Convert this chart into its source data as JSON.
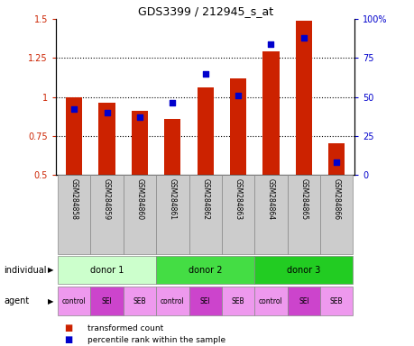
{
  "title": "GDS3399 / 212945_s_at",
  "samples": [
    "GSM284858",
    "GSM284859",
    "GSM284860",
    "GSM284861",
    "GSM284862",
    "GSM284863",
    "GSM284864",
    "GSM284865",
    "GSM284866"
  ],
  "transformed_count": [
    1.0,
    0.96,
    0.91,
    0.86,
    1.06,
    1.12,
    1.29,
    1.49,
    0.7
  ],
  "percentile_rank": [
    42,
    40,
    37,
    46,
    65,
    51,
    84,
    88,
    8
  ],
  "ylim_left": [
    0.5,
    1.5
  ],
  "ylim_right": [
    0,
    100
  ],
  "yticks_left": [
    0.5,
    0.75,
    1.0,
    1.25,
    1.5
  ],
  "yticks_right": [
    0,
    25,
    50,
    75,
    100
  ],
  "ytick_labels_left": [
    "0.5",
    "0.75",
    "1",
    "1.25",
    "1.5"
  ],
  "ytick_labels_right": [
    "0",
    "25",
    "50",
    "75",
    "100%"
  ],
  "bar_color": "#cc2200",
  "dot_color": "#0000cc",
  "bar_width": 0.5,
  "individuals": [
    {
      "label": "donor 1",
      "span": [
        0,
        3
      ],
      "color": "#ccffcc"
    },
    {
      "label": "donor 2",
      "span": [
        3,
        6
      ],
      "color": "#44dd44"
    },
    {
      "label": "donor 3",
      "span": [
        6,
        9
      ],
      "color": "#22cc22"
    }
  ],
  "agents": [
    {
      "label": "control",
      "color": "#ee99ee"
    },
    {
      "label": "SEI",
      "color": "#cc44cc"
    },
    {
      "label": "SEB",
      "color": "#ee99ee"
    },
    {
      "label": "control",
      "color": "#ee99ee"
    },
    {
      "label": "SEI",
      "color": "#cc44cc"
    },
    {
      "label": "SEB",
      "color": "#ee99ee"
    },
    {
      "label": "control",
      "color": "#ee99ee"
    },
    {
      "label": "SEI",
      "color": "#cc44cc"
    },
    {
      "label": "SEB",
      "color": "#ee99ee"
    }
  ],
  "legend_bar_label": "transformed count",
  "legend_dot_label": "percentile rank within the sample",
  "individual_label": "individual",
  "agent_label": "agent",
  "tick_color_left": "#cc2200",
  "tick_color_right": "#0000cc",
  "sample_bg_color": "#cccccc",
  "sample_border_color": "#888888",
  "grid_yticks": [
    0.75,
    1.0,
    1.25
  ]
}
